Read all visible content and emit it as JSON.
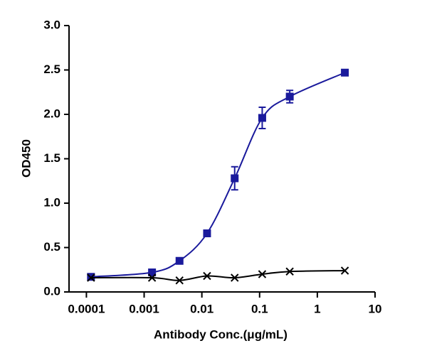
{
  "chart_data": {
    "type": "scatter",
    "x_label": "Antibody Conc.(μg/mL)",
    "y_label": "OD450",
    "x_scale": "log",
    "xlim": [
      5e-05,
      10
    ],
    "xticks": [
      0.0001,
      0.001,
      0.01,
      0.1,
      1,
      10
    ],
    "ylim": [
      0,
      3
    ],
    "yticks": [
      {
        "value": 0,
        "label": "0.0"
      },
      {
        "value": 0.5,
        "label": "0.5"
      },
      {
        "value": 1,
        "label": "1.0"
      },
      {
        "value": 1.5,
        "label": "1.5"
      },
      {
        "value": 2,
        "label": "2.0"
      },
      {
        "value": 2.5,
        "label": "2.5"
      },
      {
        "value": 3,
        "label": "3.0"
      }
    ],
    "series": [
      {
        "color": "#1a1a9c",
        "marker": "square",
        "x": [
          0.00012,
          0.00137,
          0.0041,
          0.0123,
          0.037,
          0.111,
          0.333,
          3
        ],
        "values": [
          0.17,
          0.22,
          0.35,
          0.66,
          1.28,
          1.96,
          2.2,
          2.47
        ],
        "errors": [
          null,
          null,
          null,
          null,
          0.13,
          0.12,
          0.07,
          null
        ]
      },
      {
        "color": "#000000",
        "marker": "x",
        "x": [
          0.00012,
          0.00137,
          0.0041,
          0.0123,
          0.037,
          0.111,
          0.333,
          3
        ],
        "values": [
          0.16,
          0.16,
          0.13,
          0.18,
          0.16,
          0.2,
          0.23,
          0.24
        ]
      }
    ]
  }
}
